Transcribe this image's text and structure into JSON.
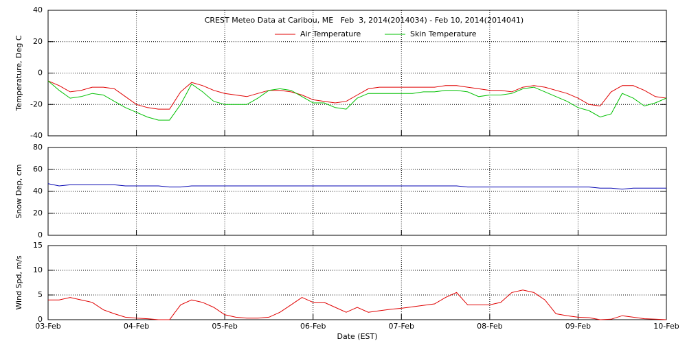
{
  "chart_data": [
    {
      "type": "line",
      "title": "CREST Meteo Data at Caribou, ME   Feb  3, 2014(2014034) - Feb 10, 2014(2014041)",
      "ylabel": "Temperature, Deg C",
      "x": [
        0,
        0.125,
        0.25,
        0.375,
        0.5,
        0.625,
        0.75,
        0.875,
        1,
        1.125,
        1.25,
        1.375,
        1.5,
        1.625,
        1.75,
        1.875,
        2,
        2.125,
        2.25,
        2.375,
        2.5,
        2.625,
        2.75,
        2.875,
        3,
        3.125,
        3.25,
        3.375,
        3.5,
        3.625,
        3.75,
        3.875,
        4,
        4.125,
        4.25,
        4.375,
        4.5,
        4.625,
        4.75,
        4.875,
        5,
        5.125,
        5.25,
        5.375,
        5.5,
        5.625,
        5.75,
        5.875,
        6,
        6.125,
        6.25,
        6.375,
        6.5,
        6.625,
        6.75,
        6.875,
        7
      ],
      "xlim": [
        0,
        7
      ],
      "xticks": [
        0,
        1,
        2,
        3,
        4,
        5,
        6,
        7
      ],
      "ylim": [
        -40,
        40
      ],
      "yticks": [
        -40,
        -20,
        0,
        20,
        40
      ],
      "grid": true,
      "legend": "top",
      "series": [
        {
          "name": "Air Temperature",
          "color": "#e00000",
          "values": [
            -5,
            -8,
            -12,
            -11,
            -9,
            -9,
            -10,
            -15,
            -20,
            -22,
            -23,
            -23,
            -12,
            -6,
            -8,
            -11,
            -13,
            -14,
            -15,
            -13,
            -11,
            -11,
            -12,
            -14,
            -17,
            -18,
            -19,
            -18,
            -14,
            -10,
            -9,
            -9,
            -9,
            -9,
            -9,
            -9,
            -8,
            -8,
            -9,
            -10,
            -11,
            -11,
            -12,
            -9,
            -8,
            -9,
            -11,
            -13,
            -16,
            -20,
            -21,
            -12,
            -8,
            -8,
            -11,
            -15,
            -16
          ]
        },
        {
          "name": "Skin Temperature",
          "color": "#00c000",
          "values": [
            -5,
            -11,
            -16,
            -15,
            -13,
            -14,
            -18,
            -22,
            -25,
            -28,
            -30,
            -30,
            -20,
            -7,
            -12,
            -18,
            -20,
            -20,
            -20,
            -16,
            -11,
            -10,
            -11,
            -15,
            -19,
            -19,
            -22,
            -23,
            -16,
            -13,
            -13,
            -13,
            -13,
            -13,
            -12,
            -12,
            -11,
            -11,
            -12,
            -15,
            -14,
            -14,
            -13,
            -10,
            -9,
            -12,
            -15,
            -18,
            -22,
            -24,
            -28,
            -26,
            -13,
            -16,
            -21,
            -19,
            -16
          ]
        }
      ]
    },
    {
      "type": "line",
      "ylabel": "Snow Dep, cm",
      "x": [
        0,
        0.125,
        0.25,
        0.375,
        0.5,
        0.625,
        0.75,
        0.875,
        1,
        1.125,
        1.25,
        1.375,
        1.5,
        1.625,
        1.75,
        1.875,
        2,
        2.125,
        2.25,
        2.375,
        2.5,
        2.625,
        2.75,
        2.875,
        3,
        3.125,
        3.25,
        3.375,
        3.5,
        3.625,
        3.75,
        3.875,
        4,
        4.125,
        4.25,
        4.375,
        4.5,
        4.625,
        4.75,
        4.875,
        5,
        5.125,
        5.25,
        5.375,
        5.5,
        5.625,
        5.75,
        5.875,
        6,
        6.125,
        6.25,
        6.375,
        6.5,
        6.625,
        6.75,
        6.875,
        7
      ],
      "xlim": [
        0,
        7
      ],
      "xticks": [
        0,
        1,
        2,
        3,
        4,
        5,
        6,
        7
      ],
      "ylim": [
        0,
        80
      ],
      "yticks": [
        0,
        20,
        40,
        60,
        80
      ],
      "grid": true,
      "series": [
        {
          "color": "#0000b0",
          "values": [
            47,
            45,
            46,
            46,
            46,
            46,
            46,
            45,
            45,
            45,
            45,
            44,
            44,
            45,
            45,
            45,
            45,
            45,
            45,
            45,
            45,
            45,
            45,
            45,
            45,
            45,
            45,
            45,
            45,
            45,
            45,
            45,
            45,
            45,
            45,
            45,
            45,
            45,
            44,
            44,
            44,
            44,
            44,
            44,
            44,
            44,
            44,
            44,
            44,
            44,
            43,
            43,
            42,
            43,
            43,
            43,
            43
          ]
        }
      ]
    },
    {
      "type": "line",
      "ylabel": "Wind Spd, m/s",
      "xlabel": "Date (EST)",
      "x": [
        0,
        0.125,
        0.25,
        0.375,
        0.5,
        0.625,
        0.75,
        0.875,
        1,
        1.125,
        1.25,
        1.375,
        1.5,
        1.625,
        1.75,
        1.875,
        2,
        2.125,
        2.25,
        2.375,
        2.5,
        2.625,
        2.75,
        2.875,
        3,
        3.125,
        3.25,
        3.375,
        3.5,
        3.625,
        3.75,
        3.875,
        4,
        4.125,
        4.25,
        4.375,
        4.5,
        4.625,
        4.75,
        4.875,
        5,
        5.125,
        5.25,
        5.375,
        5.5,
        5.625,
        5.75,
        5.875,
        6,
        6.125,
        6.25,
        6.375,
        6.5,
        6.625,
        6.75,
        6.875,
        7
      ],
      "xlim": [
        0,
        7
      ],
      "xticks": [
        {
          "value": 0,
          "label": "03-Feb"
        },
        {
          "value": 1,
          "label": "04-Feb"
        },
        {
          "value": 2,
          "label": "05-Feb"
        },
        {
          "value": 3,
          "label": "06-Feb"
        },
        {
          "value": 4,
          "label": "07-Feb"
        },
        {
          "value": 5,
          "label": "08-Feb"
        },
        {
          "value": 6,
          "label": "09-Feb"
        },
        {
          "value": 7,
          "label": "10-Feb"
        }
      ],
      "ylim": [
        0,
        15
      ],
      "yticks": [
        0,
        5,
        10,
        15
      ],
      "grid": true,
      "series": [
        {
          "color": "#e00000",
          "values": [
            4,
            4,
            4.5,
            4,
            3.5,
            2,
            1.2,
            0.5,
            0.3,
            0.2,
            0,
            0,
            3,
            4,
            3.5,
            2.5,
            1,
            0.5,
            0.3,
            0.3,
            0.5,
            1.5,
            3,
            4.5,
            3.5,
            3.5,
            2.5,
            1.5,
            2.5,
            1.5,
            1.8,
            2.1,
            2.3,
            2.6,
            2.9,
            3.2,
            4.5,
            5.5,
            3,
            3,
            3,
            3.5,
            5.5,
            6,
            5.5,
            4,
            1.2,
            0.8,
            0.5,
            0.4,
            0,
            0.1,
            0.8,
            0.5,
            0.2,
            0.1,
            0
          ]
        }
      ]
    }
  ]
}
